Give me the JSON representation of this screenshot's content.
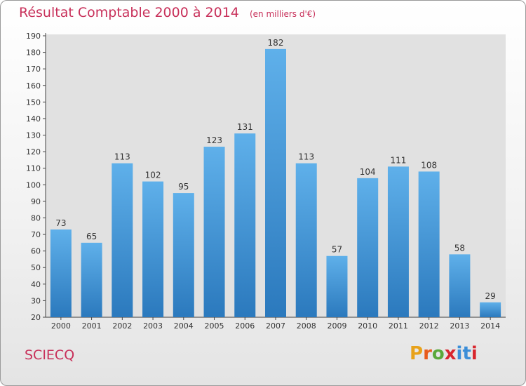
{
  "header": {
    "title": "Résultat Comptable 2000 à 2014",
    "unit": "(en milliers d'€)"
  },
  "footer": {
    "commune": "SCIECQ",
    "brand": "Proxiti"
  },
  "colors": {
    "title": "#c8305a",
    "bar_top": "#5fb0ea",
    "bar_bottom": "#2b79bd",
    "plot_background": "#e1e1e1",
    "logo_letters": [
      "#e8a21a",
      "#e85a1a",
      "#5aa83a",
      "#d8262e",
      "#3b8ed8",
      "#3b8ed8",
      "#d8262e"
    ]
  },
  "chart_data": {
    "type": "bar",
    "title": "Résultat Comptable 2000 à 2014",
    "subtitle": "(en milliers d'€)",
    "categories": [
      "2000",
      "2001",
      "2002",
      "2003",
      "2004",
      "2005",
      "2006",
      "2007",
      "2008",
      "2009",
      "2010",
      "2011",
      "2012",
      "2013",
      "2014"
    ],
    "values": [
      73,
      65,
      113,
      102,
      95,
      123,
      131,
      182,
      113,
      57,
      104,
      111,
      108,
      58,
      29
    ],
    "ylim": [
      20,
      190
    ],
    "yticks": [
      20,
      30,
      40,
      50,
      60,
      70,
      80,
      90,
      100,
      110,
      120,
      130,
      140,
      150,
      160,
      170,
      180,
      190
    ],
    "grid": false,
    "data_labels": true
  }
}
